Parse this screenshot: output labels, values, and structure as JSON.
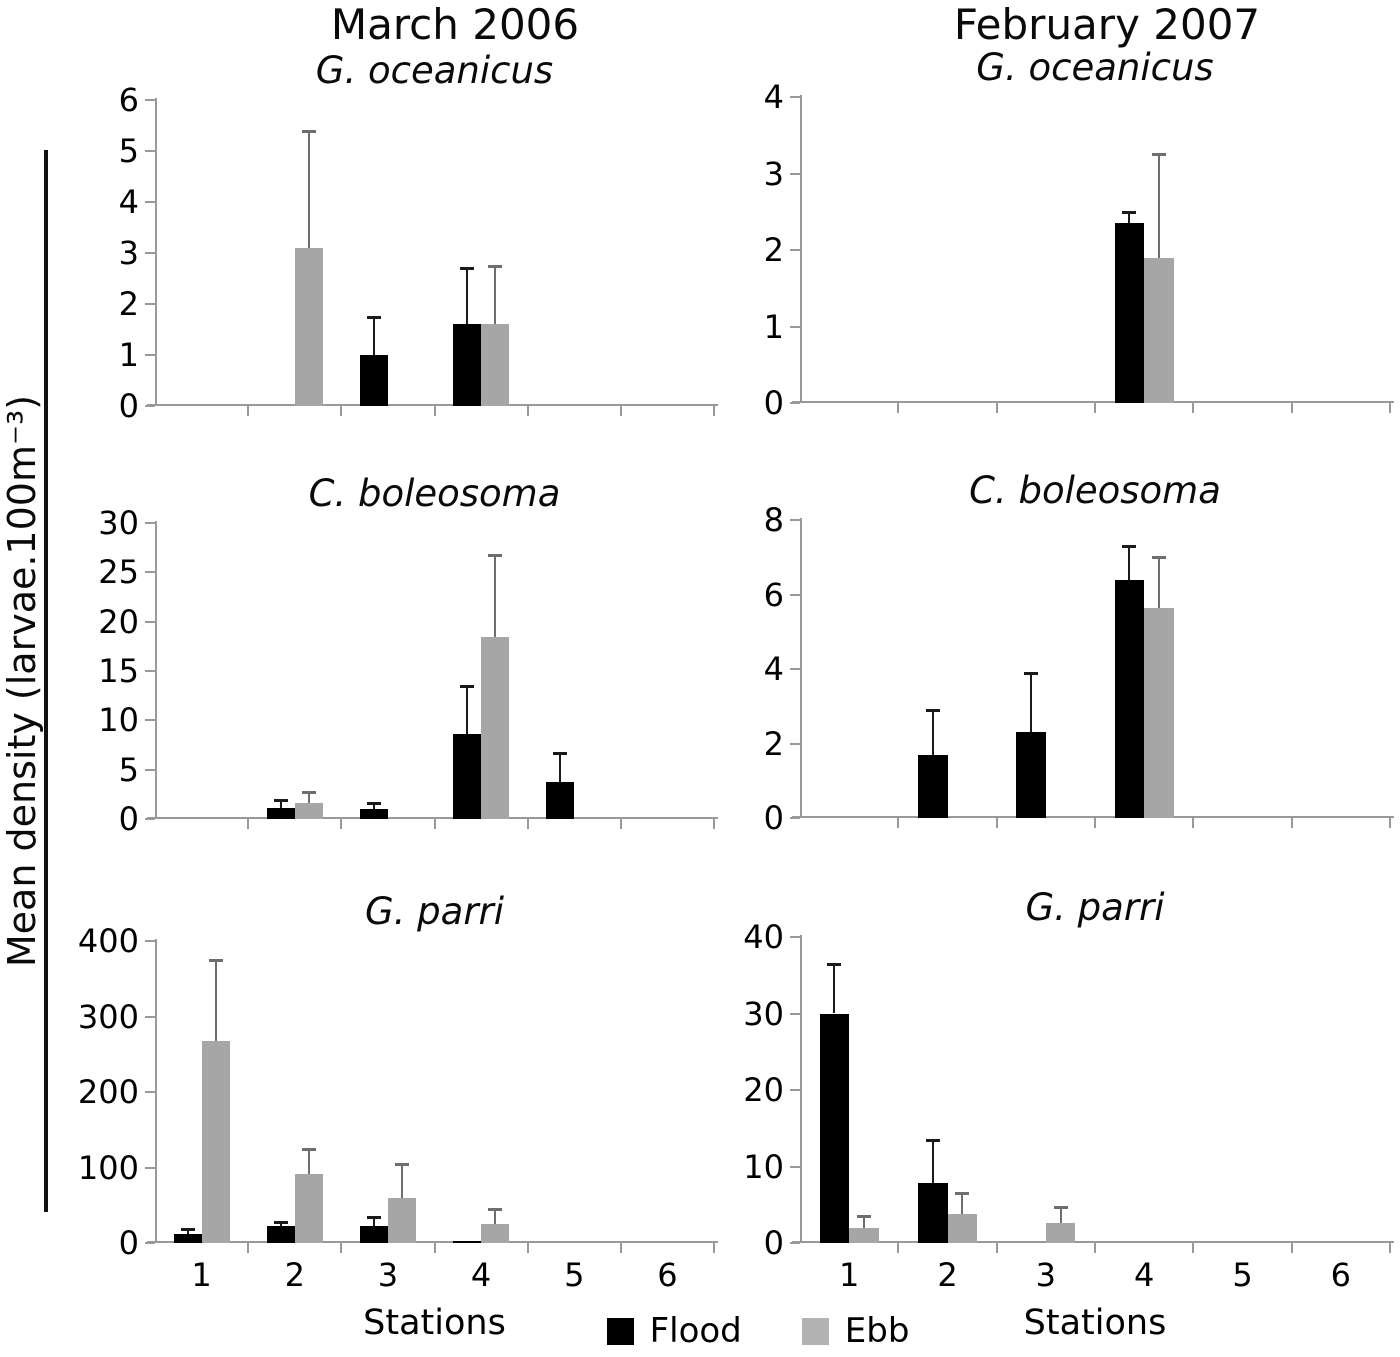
{
  "figure": {
    "column_titles": [
      "March 2006",
      "February 2007"
    ],
    "y_axis_label": "Mean density (larvae.100m⁻³)",
    "x_axis_label": "Stations",
    "stations": [
      "1",
      "2",
      "3",
      "4",
      "5",
      "6"
    ],
    "legend": [
      {
        "label": "Flood",
        "color": "#000000"
      },
      {
        "label": "Ebb",
        "color": "#b3b3b3"
      }
    ],
    "colors": {
      "flood_bar": "#000000",
      "ebb_bar": "#a6a6a6",
      "axis": "#999999",
      "flood_error": "#1a1a1a",
      "ebb_error": "#6e6e6e"
    }
  },
  "chart_data": [
    {
      "type": "bar",
      "title": "G. oceanicus",
      "column": "March 2006",
      "categories": [
        "1",
        "2",
        "3",
        "4",
        "5",
        "6"
      ],
      "ylim": [
        0,
        6
      ],
      "yticks": [
        0,
        1,
        2,
        3,
        4,
        5,
        6
      ],
      "grid": "off",
      "x_tick_labels_visible": false,
      "series": [
        {
          "name": "Flood",
          "values": [
            null,
            null,
            1.0,
            1.6,
            null,
            null
          ],
          "error_top": [
            null,
            null,
            1.75,
            2.7,
            null,
            null
          ]
        },
        {
          "name": "Ebb",
          "values": [
            null,
            3.1,
            null,
            1.6,
            null,
            null
          ],
          "error_top": [
            null,
            5.4,
            null,
            2.75,
            null,
            null
          ]
        }
      ]
    },
    {
      "type": "bar",
      "title": "G. oceanicus",
      "column": "February 2007",
      "categories": [
        "1",
        "2",
        "3",
        "4",
        "5",
        "6"
      ],
      "ylim": [
        0,
        4
      ],
      "yticks": [
        0,
        1,
        2,
        3,
        4
      ],
      "grid": "off",
      "x_tick_labels_visible": false,
      "series": [
        {
          "name": "Flood",
          "values": [
            null,
            null,
            null,
            2.35,
            null,
            null
          ],
          "error_top": [
            null,
            null,
            null,
            2.5,
            null,
            null
          ]
        },
        {
          "name": "Ebb",
          "values": [
            null,
            null,
            null,
            1.9,
            null,
            null
          ],
          "error_top": [
            null,
            null,
            null,
            3.25,
            null,
            null
          ]
        }
      ]
    },
    {
      "type": "bar",
      "title": "C. boleosoma",
      "column": "March 2006",
      "categories": [
        "1",
        "2",
        "3",
        "4",
        "5",
        "6"
      ],
      "ylim": [
        0,
        30
      ],
      "yticks": [
        0,
        5,
        10,
        15,
        20,
        25,
        30
      ],
      "grid": "off",
      "x_tick_labels_visible": false,
      "series": [
        {
          "name": "Flood",
          "values": [
            null,
            1.1,
            1.0,
            8.6,
            3.8,
            null
          ],
          "error_top": [
            null,
            1.9,
            1.6,
            13.5,
            6.7,
            null
          ]
        },
        {
          "name": "Ebb",
          "values": [
            null,
            1.6,
            null,
            18.4,
            null,
            null
          ],
          "error_top": [
            null,
            2.7,
            null,
            26.8,
            null,
            null
          ]
        }
      ]
    },
    {
      "type": "bar",
      "title": "C. boleosoma",
      "column": "February 2007",
      "categories": [
        "1",
        "2",
        "3",
        "4",
        "5",
        "6"
      ],
      "ylim": [
        0,
        8
      ],
      "yticks": [
        0,
        2,
        4,
        6,
        8
      ],
      "grid": "off",
      "x_tick_labels_visible": false,
      "series": [
        {
          "name": "Flood",
          "values": [
            null,
            1.7,
            2.3,
            6.4,
            null,
            null
          ],
          "error_top": [
            null,
            2.9,
            3.9,
            7.3,
            null,
            null
          ]
        },
        {
          "name": "Ebb",
          "values": [
            null,
            null,
            null,
            5.65,
            null,
            null
          ],
          "error_top": [
            null,
            null,
            null,
            7.0,
            null,
            null
          ]
        }
      ]
    },
    {
      "type": "bar",
      "title": "G. parri",
      "column": "March 2006",
      "categories": [
        "1",
        "2",
        "3",
        "4",
        "5",
        "6"
      ],
      "ylim": [
        0,
        400
      ],
      "yticks": [
        0,
        100,
        200,
        300,
        400
      ],
      "grid": "off",
      "x_tick_labels_visible": true,
      "xlabel": "Stations",
      "series": [
        {
          "name": "Flood",
          "values": [
            12,
            22,
            23,
            3,
            null,
            null
          ],
          "error_top": [
            18,
            28,
            35,
            null,
            null,
            null
          ]
        },
        {
          "name": "Ebb",
          "values": [
            268,
            92,
            60,
            25,
            null,
            null
          ],
          "error_top": [
            375,
            125,
            105,
            45,
            null,
            null
          ]
        }
      ]
    },
    {
      "type": "bar",
      "title": "G. parri",
      "column": "February 2007",
      "categories": [
        "1",
        "2",
        "3",
        "4",
        "5",
        "6"
      ],
      "ylim": [
        0,
        40
      ],
      "yticks": [
        0,
        10,
        20,
        30,
        40
      ],
      "grid": "off",
      "x_tick_labels_visible": true,
      "xlabel": "Stations",
      "series": [
        {
          "name": "Flood",
          "values": [
            30,
            7.8,
            null,
            null,
            null,
            null
          ],
          "error_top": [
            36.5,
            13.5,
            null,
            null,
            null,
            null
          ]
        },
        {
          "name": "Ebb",
          "values": [
            2,
            3.8,
            2.6,
            null,
            null,
            null
          ],
          "error_top": [
            3.5,
            6.5,
            4.7,
            null,
            null,
            null
          ]
        }
      ]
    }
  ]
}
